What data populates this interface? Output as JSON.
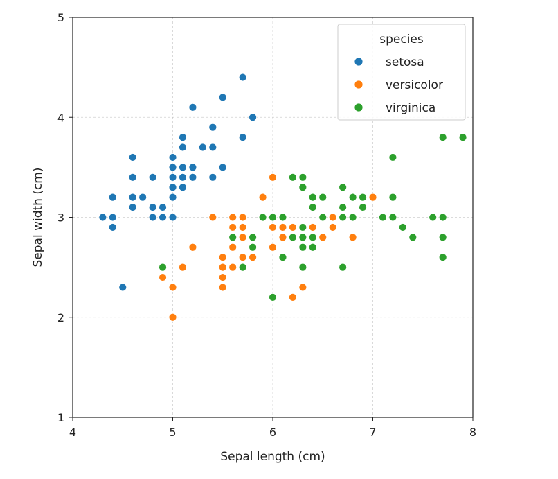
{
  "chart_data": {
    "type": "scatter",
    "xlabel": "Sepal length (cm)",
    "ylabel": "Sepal width (cm)",
    "xlim": [
      4,
      8
    ],
    "ylim": [
      1,
      5
    ],
    "xticks": [
      "4",
      "5",
      "6",
      "7",
      "8"
    ],
    "yticks": [
      "1",
      "2",
      "3",
      "4",
      "5"
    ],
    "grid": true,
    "legend": {
      "title": "species",
      "placement": "top-right"
    },
    "series": [
      {
        "name": "setosa",
        "color": "#1f77b4",
        "points": [
          [
            4.3,
            3.0
          ],
          [
            4.4,
            2.9
          ],
          [
            4.4,
            3.0
          ],
          [
            4.4,
            3.2
          ],
          [
            4.5,
            2.3
          ],
          [
            4.6,
            3.1
          ],
          [
            4.6,
            3.2
          ],
          [
            4.6,
            3.4
          ],
          [
            4.6,
            3.6
          ],
          [
            4.7,
            3.2
          ],
          [
            4.8,
            3.0
          ],
          [
            4.8,
            3.1
          ],
          [
            4.8,
            3.4
          ],
          [
            4.9,
            3.0
          ],
          [
            4.9,
            3.1
          ],
          [
            5.0,
            3.0
          ],
          [
            5.0,
            3.2
          ],
          [
            5.0,
            3.3
          ],
          [
            5.0,
            3.4
          ],
          [
            5.0,
            3.5
          ],
          [
            5.0,
            3.6
          ],
          [
            5.1,
            3.3
          ],
          [
            5.1,
            3.4
          ],
          [
            5.1,
            3.5
          ],
          [
            5.1,
            3.7
          ],
          [
            5.1,
            3.8
          ],
          [
            5.2,
            3.4
          ],
          [
            5.2,
            3.5
          ],
          [
            5.2,
            4.1
          ],
          [
            5.3,
            3.7
          ],
          [
            5.4,
            3.4
          ],
          [
            5.4,
            3.7
          ],
          [
            5.4,
            3.9
          ],
          [
            5.5,
            3.5
          ],
          [
            5.5,
            4.2
          ],
          [
            5.7,
            3.8
          ],
          [
            5.7,
            4.4
          ],
          [
            5.8,
            4.0
          ]
        ]
      },
      {
        "name": "versicolor",
        "color": "#ff7f0e",
        "points": [
          [
            4.9,
            2.4
          ],
          [
            5.0,
            2.0
          ],
          [
            5.0,
            2.3
          ],
          [
            5.1,
            2.5
          ],
          [
            5.2,
            2.7
          ],
          [
            5.4,
            3.0
          ],
          [
            5.5,
            2.3
          ],
          [
            5.5,
            2.4
          ],
          [
            5.5,
            2.5
          ],
          [
            5.5,
            2.6
          ],
          [
            5.6,
            2.5
          ],
          [
            5.6,
            2.7
          ],
          [
            5.6,
            2.9
          ],
          [
            5.6,
            3.0
          ],
          [
            5.7,
            2.6
          ],
          [
            5.7,
            2.8
          ],
          [
            5.7,
            2.9
          ],
          [
            5.7,
            3.0
          ],
          [
            5.8,
            2.6
          ],
          [
            5.8,
            2.7
          ],
          [
            5.9,
            3.0
          ],
          [
            5.9,
            3.2
          ],
          [
            6.0,
            2.2
          ],
          [
            6.0,
            2.7
          ],
          [
            6.0,
            2.9
          ],
          [
            6.0,
            3.4
          ],
          [
            6.1,
            2.8
          ],
          [
            6.1,
            2.9
          ],
          [
            6.1,
            3.0
          ],
          [
            6.2,
            2.2
          ],
          [
            6.2,
            2.9
          ],
          [
            6.3,
            2.3
          ],
          [
            6.3,
            2.5
          ],
          [
            6.3,
            3.3
          ],
          [
            6.4,
            2.9
          ],
          [
            6.4,
            3.2
          ],
          [
            6.5,
            2.8
          ],
          [
            6.6,
            2.9
          ],
          [
            6.6,
            3.0
          ],
          [
            6.7,
            3.0
          ],
          [
            6.8,
            2.8
          ],
          [
            7.0,
            3.2
          ]
        ]
      },
      {
        "name": "virginica",
        "color": "#2ca02c",
        "points": [
          [
            4.9,
            2.5
          ],
          [
            5.6,
            2.8
          ],
          [
            5.7,
            2.5
          ],
          [
            5.8,
            2.7
          ],
          [
            5.8,
            2.8
          ],
          [
            5.9,
            3.0
          ],
          [
            6.0,
            2.2
          ],
          [
            6.0,
            3.0
          ],
          [
            6.1,
            2.6
          ],
          [
            6.1,
            3.0
          ],
          [
            6.2,
            2.8
          ],
          [
            6.2,
            3.4
          ],
          [
            6.3,
            2.5
          ],
          [
            6.3,
            2.7
          ],
          [
            6.3,
            2.8
          ],
          [
            6.3,
            2.9
          ],
          [
            6.3,
            3.3
          ],
          [
            6.3,
            3.4
          ],
          [
            6.4,
            2.7
          ],
          [
            6.4,
            2.8
          ],
          [
            6.4,
            3.1
          ],
          [
            6.4,
            3.2
          ],
          [
            6.5,
            3.0
          ],
          [
            6.5,
            3.2
          ],
          [
            6.7,
            2.5
          ],
          [
            6.7,
            3.0
          ],
          [
            6.7,
            3.1
          ],
          [
            6.7,
            3.3
          ],
          [
            6.8,
            3.0
          ],
          [
            6.8,
            3.2
          ],
          [
            6.9,
            3.1
          ],
          [
            6.9,
            3.2
          ],
          [
            7.1,
            3.0
          ],
          [
            7.2,
            3.0
          ],
          [
            7.2,
            3.2
          ],
          [
            7.2,
            3.6
          ],
          [
            7.3,
            2.9
          ],
          [
            7.4,
            2.8
          ],
          [
            7.6,
            3.0
          ],
          [
            7.7,
            2.6
          ],
          [
            7.7,
            2.8
          ],
          [
            7.7,
            3.0
          ],
          [
            7.7,
            3.8
          ],
          [
            7.9,
            3.8
          ]
        ]
      }
    ]
  }
}
